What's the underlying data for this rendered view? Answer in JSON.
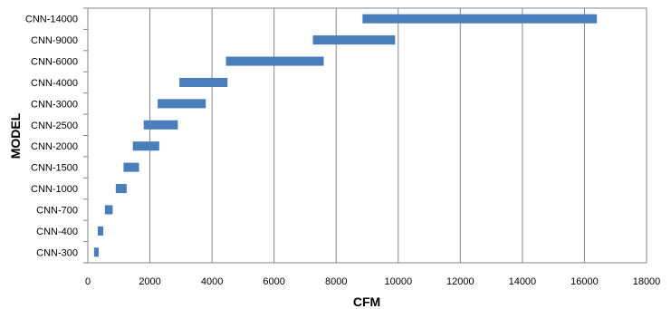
{
  "chart_data": {
    "type": "bar",
    "orientation": "horizontal-range",
    "title": "",
    "xlabel": "CFM",
    "ylabel": "MODEL",
    "xlim": [
      0,
      18000
    ],
    "x_ticks": [
      0,
      2000,
      4000,
      6000,
      8000,
      10000,
      12000,
      14000,
      16000,
      18000
    ],
    "grid": "vertical",
    "legend": "none",
    "bar_color": "#4A7EBB",
    "categories": [
      "CNN-300",
      "CNN-400",
      "CNN-700",
      "CNN-1000",
      "CNN-1500",
      "CNN-2000",
      "CNN-2500",
      "CNN-3000",
      "CNN-4000",
      "CNN-6000",
      "CNN-9000",
      "CNN-14000"
    ],
    "ranges": [
      [
        200,
        350
      ],
      [
        320,
        500
      ],
      [
        550,
        800
      ],
      [
        900,
        1250
      ],
      [
        1150,
        1650
      ],
      [
        1450,
        2300
      ],
      [
        1800,
        2900
      ],
      [
        2250,
        3800
      ],
      [
        2950,
        4500
      ],
      [
        4450,
        7600
      ],
      [
        7250,
        9900
      ],
      [
        8850,
        16400
      ]
    ]
  }
}
